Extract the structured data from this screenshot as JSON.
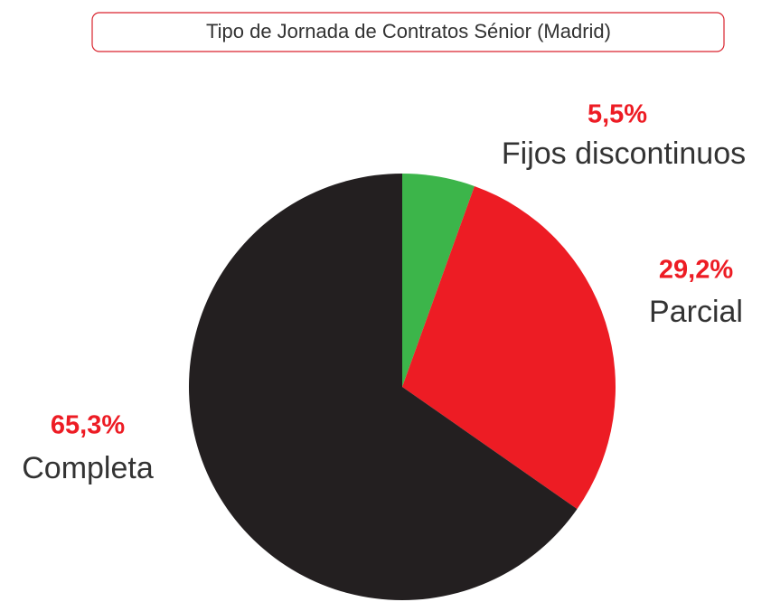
{
  "chart_data": {
    "type": "pie",
    "title": "Tipo de Jornada de Contratos Sénior (Madrid)",
    "categories": [
      "Fijos discontinuos",
      "Parcial",
      "Completa"
    ],
    "values": [
      5.5,
      29.2,
      65.3
    ],
    "value_labels": [
      "5,5%",
      "29,2%",
      "65,3%"
    ],
    "colors": [
      "#3cb54a",
      "#ed1c24",
      "#231f20"
    ]
  }
}
